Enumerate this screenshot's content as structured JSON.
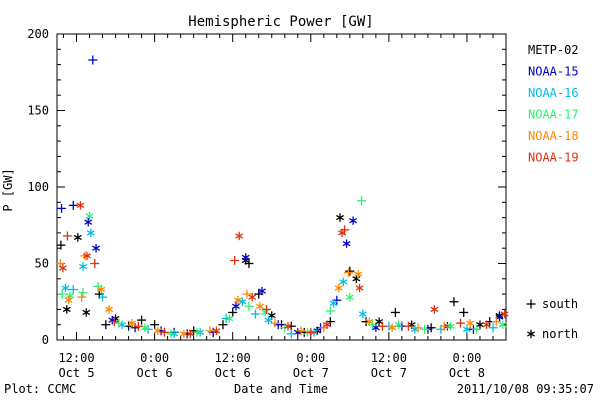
{
  "chart_data": {
    "type": "scatter",
    "title": "Hemispheric Power [GW]",
    "ylabel": "P [GW]",
    "xlabel": "Date and Time",
    "ylim": [
      0,
      200
    ],
    "yticks": [
      0,
      50,
      100,
      150,
      200
    ],
    "x_unit": "hours since 2011-10-05 00:00",
    "xlim": [
      9,
      78
    ],
    "xticks": [
      {
        "x": 12,
        "time": "12:00",
        "date": "Oct 5"
      },
      {
        "x": 24,
        "time": "0:00",
        "date": "Oct 6"
      },
      {
        "x": 36,
        "time": "12:00",
        "date": "Oct 6"
      },
      {
        "x": 48,
        "time": "0:00",
        "date": "Oct 7"
      },
      {
        "x": 60,
        "time": "12:00",
        "date": "Oct 7"
      },
      {
        "x": 72,
        "time": "0:00",
        "date": "Oct 8"
      }
    ],
    "marker_legend": [
      {
        "symbol": "+",
        "label": "south"
      },
      {
        "symbol": "*",
        "label": "north"
      }
    ],
    "grid": false,
    "legend_position": "right",
    "series": [
      {
        "name": "METP-02",
        "color": "#000000",
        "points": [
          [
            9.6,
            62,
            "+"
          ],
          [
            10.5,
            20,
            "*"
          ],
          [
            12.2,
            67,
            "*"
          ],
          [
            13.5,
            18,
            "*"
          ],
          [
            15.5,
            30,
            "+"
          ],
          [
            16.5,
            10,
            "+"
          ],
          [
            18,
            14,
            "*"
          ],
          [
            20,
            9,
            "+"
          ],
          [
            22,
            13,
            "+"
          ],
          [
            24,
            10,
            "+"
          ],
          [
            27,
            5,
            "+"
          ],
          [
            30,
            6,
            "+"
          ],
          [
            33,
            5,
            "+"
          ],
          [
            34.5,
            10,
            "+"
          ],
          [
            36,
            18,
            "+"
          ],
          [
            38,
            52,
            "*"
          ],
          [
            38.5,
            50,
            "+"
          ],
          [
            40,
            30,
            "+"
          ],
          [
            42,
            16,
            "*"
          ],
          [
            43.5,
            10,
            "+"
          ],
          [
            45,
            9,
            "+"
          ],
          [
            47,
            5,
            "+"
          ],
          [
            49,
            6,
            "*"
          ],
          [
            51,
            12,
            "+"
          ],
          [
            52.5,
            80,
            "*"
          ],
          [
            54,
            45,
            "+"
          ],
          [
            55,
            40,
            "*"
          ],
          [
            56.5,
            12,
            "+"
          ],
          [
            58.5,
            12,
            "*"
          ],
          [
            61,
            18,
            "+"
          ],
          [
            63.5,
            10,
            "*"
          ],
          [
            66.5,
            8,
            "+"
          ],
          [
            70,
            25,
            "+"
          ],
          [
            71.5,
            18,
            "+"
          ],
          [
            74,
            10,
            "*"
          ],
          [
            75.5,
            12,
            "+"
          ],
          [
            77,
            16,
            "*"
          ]
        ]
      },
      {
        "name": "NOAA-15",
        "color": "#0000cc",
        "points": [
          [
            9.7,
            86,
            "+"
          ],
          [
            11.5,
            88,
            "+"
          ],
          [
            13.8,
            77,
            "*"
          ],
          [
            14.5,
            183,
            "+"
          ],
          [
            15,
            60,
            "*"
          ],
          [
            17.5,
            13,
            "*"
          ],
          [
            21,
            8,
            "+"
          ],
          [
            25,
            6,
            "+"
          ],
          [
            29,
            4,
            "+"
          ],
          [
            33,
            5,
            "+"
          ],
          [
            36.5,
            22,
            "*"
          ],
          [
            38,
            54,
            "*"
          ],
          [
            40.5,
            32,
            "*"
          ],
          [
            43,
            10,
            "+"
          ],
          [
            46,
            5,
            "*"
          ],
          [
            49.5,
            8,
            "+"
          ],
          [
            52,
            26,
            "+"
          ],
          [
            53.5,
            63,
            "*"
          ],
          [
            54.5,
            78,
            "*"
          ],
          [
            58,
            8,
            "*"
          ],
          [
            62,
            9,
            "+"
          ],
          [
            66,
            7,
            "+"
          ],
          [
            69,
            9,
            "*"
          ],
          [
            73,
            7,
            "+"
          ],
          [
            77,
            15,
            "*"
          ]
        ]
      },
      {
        "name": "NOAA-16",
        "color": "#00bbee",
        "points": [
          [
            10.3,
            34,
            "*"
          ],
          [
            11.5,
            33,
            "+"
          ],
          [
            13,
            48,
            "*"
          ],
          [
            14.2,
            70,
            "*"
          ],
          [
            16,
            28,
            "+"
          ],
          [
            19,
            10,
            "*"
          ],
          [
            23,
            7,
            "+"
          ],
          [
            27,
            4,
            "*"
          ],
          [
            31,
            5,
            "*"
          ],
          [
            35,
            14,
            "+"
          ],
          [
            37.5,
            25,
            "*"
          ],
          [
            39.5,
            17,
            "+"
          ],
          [
            41.5,
            13,
            "*"
          ],
          [
            45,
            4,
            "+"
          ],
          [
            48.5,
            5,
            "*"
          ],
          [
            51.5,
            24,
            "*"
          ],
          [
            53,
            38,
            "*"
          ],
          [
            56,
            17,
            "*"
          ],
          [
            60,
            9,
            "+"
          ],
          [
            64,
            7,
            "*"
          ],
          [
            68,
            7,
            "+"
          ],
          [
            72,
            7,
            "*"
          ],
          [
            76,
            8,
            "+"
          ]
        ]
      },
      {
        "name": "NOAA-17",
        "color": "#33ee77",
        "points": [
          [
            9.8,
            30,
            "+"
          ],
          [
            11,
            29,
            "*"
          ],
          [
            13,
            31,
            "+"
          ],
          [
            14,
            81,
            "*"
          ],
          [
            15.3,
            35,
            "+"
          ],
          [
            18.5,
            11,
            "+"
          ],
          [
            22.5,
            8,
            "*"
          ],
          [
            26.5,
            4,
            "+"
          ],
          [
            30.5,
            5,
            "+"
          ],
          [
            35.5,
            14,
            "*"
          ],
          [
            38.5,
            22,
            "+"
          ],
          [
            41,
            18,
            "*"
          ],
          [
            44,
            8,
            "+"
          ],
          [
            47.5,
            5,
            "*"
          ],
          [
            51,
            19,
            "+"
          ],
          [
            54,
            28,
            "*"
          ],
          [
            55.8,
            91,
            "+"
          ],
          [
            57.5,
            10,
            "+"
          ],
          [
            61.5,
            10,
            "*"
          ],
          [
            65.5,
            7,
            "+"
          ],
          [
            69.5,
            9,
            "*"
          ],
          [
            73.5,
            7,
            "+"
          ],
          [
            77.5,
            10,
            "*"
          ]
        ]
      },
      {
        "name": "NOAA-18",
        "color": "#ff8800",
        "points": [
          [
            9.5,
            50,
            "+"
          ],
          [
            10.8,
            26,
            "*"
          ],
          [
            12.8,
            28,
            "+"
          ],
          [
            13.3,
            55,
            "+"
          ],
          [
            15.8,
            33,
            "*"
          ],
          [
            17,
            20,
            "*"
          ],
          [
            20.5,
            11,
            "*"
          ],
          [
            24.5,
            6,
            "*"
          ],
          [
            28.5,
            4,
            "*"
          ],
          [
            32.5,
            6,
            "+"
          ],
          [
            36.8,
            26,
            "*"
          ],
          [
            38.2,
            30,
            "+"
          ],
          [
            40.2,
            22,
            "*"
          ],
          [
            42.5,
            11,
            "+"
          ],
          [
            46.5,
            6,
            "+"
          ],
          [
            50,
            8,
            "+"
          ],
          [
            52.3,
            34,
            "*"
          ],
          [
            53.8,
            44,
            "+"
          ],
          [
            55.3,
            43,
            "*"
          ],
          [
            57,
            12,
            "*"
          ],
          [
            60.5,
            8,
            "*"
          ],
          [
            64.5,
            8,
            "+"
          ],
          [
            68.5,
            9,
            "+"
          ],
          [
            72.5,
            11,
            "*"
          ],
          [
            76.5,
            12,
            "+"
          ]
        ]
      },
      {
        "name": "NOAA-19",
        "color": "#dd3311",
        "points": [
          [
            9.9,
            47,
            "*"
          ],
          [
            10.6,
            68,
            "+"
          ],
          [
            12.6,
            88,
            "*"
          ],
          [
            13.6,
            55,
            "*"
          ],
          [
            14.8,
            50,
            "+"
          ],
          [
            17.8,
            12,
            "+"
          ],
          [
            21.5,
            9,
            "+"
          ],
          [
            25.5,
            5,
            "+"
          ],
          [
            29.5,
            4,
            "*"
          ],
          [
            33.5,
            6,
            "*"
          ],
          [
            36.3,
            52,
            "+"
          ],
          [
            37,
            68,
            "*"
          ],
          [
            39,
            28,
            "*"
          ],
          [
            41.2,
            20,
            "+"
          ],
          [
            44.5,
            9,
            "*"
          ],
          [
            48,
            5,
            "+"
          ],
          [
            50.5,
            10,
            "*"
          ],
          [
            52.8,
            70,
            "*"
          ],
          [
            53.2,
            72,
            "+"
          ],
          [
            55.5,
            34,
            "*"
          ],
          [
            59,
            9,
            "+"
          ],
          [
            63,
            9,
            "+"
          ],
          [
            67,
            20,
            "*"
          ],
          [
            71,
            11,
            "+"
          ],
          [
            75,
            10,
            "*"
          ],
          [
            77.8,
            17,
            "*"
          ]
        ]
      }
    ]
  },
  "footer": {
    "left": "Plot: CCMC",
    "right": "2011/10/08 09:35:07"
  }
}
